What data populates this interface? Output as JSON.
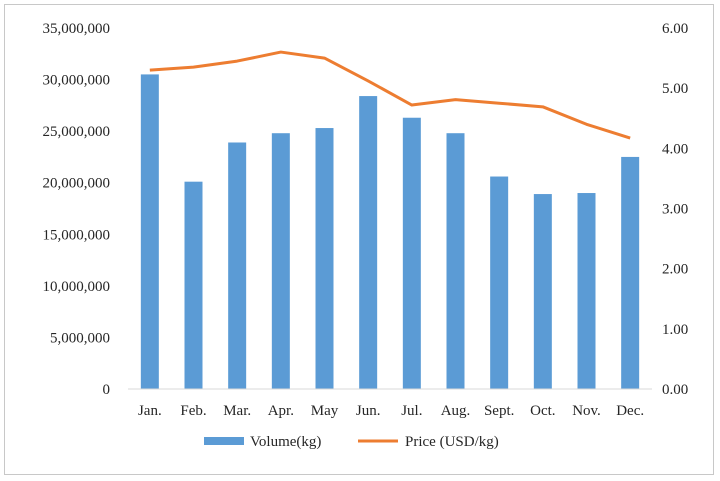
{
  "chart_data": {
    "type": "bar",
    "categories": [
      "Jan.",
      "Feb.",
      "Mar.",
      "Apr.",
      "May",
      "Jun.",
      "Jul.",
      "Aug.",
      "Sept.",
      "Oct.",
      "Nov.",
      "Dec."
    ],
    "series": [
      {
        "name": "Volume(kg)",
        "type": "bar",
        "axis": "left",
        "color": "#5B9BD5",
        "values": [
          30500000,
          20100000,
          23900000,
          24800000,
          25300000,
          28400000,
          26300000,
          24800000,
          20600000,
          18900000,
          19000000,
          22500000
        ]
      },
      {
        "name": "Price (USD/kg)",
        "type": "line",
        "axis": "right",
        "color": "#ED7D31",
        "values": [
          5.3,
          5.35,
          5.45,
          5.6,
          5.5,
          5.12,
          4.72,
          4.81,
          4.75,
          4.69,
          4.4,
          4.17
        ]
      }
    ],
    "y_left": {
      "ylim": [
        0,
        35000000
      ],
      "ticks": [
        0,
        5000000,
        10000000,
        15000000,
        20000000,
        25000000,
        30000000,
        35000000
      ],
      "tick_labels": [
        "0",
        "5,000,000",
        "10,000,000",
        "15,000,000",
        "20,000,000",
        "25,000,000",
        "30,000,000",
        "35,000,000"
      ]
    },
    "y_right": {
      "ylim": [
        0,
        6
      ],
      "ticks": [
        0,
        1,
        2,
        3,
        4,
        5,
        6
      ],
      "tick_labels": [
        "0.00",
        "1.00",
        "2.00",
        "3.00",
        "4.00",
        "5.00",
        "6.00"
      ]
    },
    "grid": false,
    "legend": "bottom"
  }
}
